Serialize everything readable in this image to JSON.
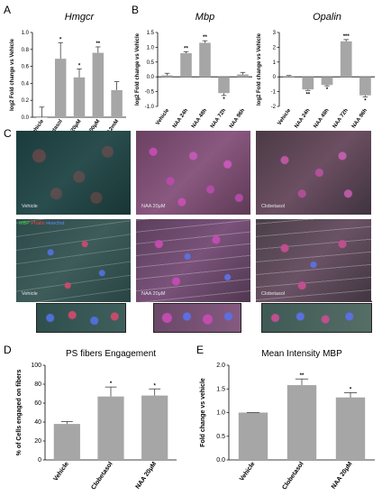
{
  "panels": {
    "A": {
      "letter": "A"
    },
    "B": {
      "letter": "B"
    },
    "C": {
      "letter": "C"
    },
    "D": {
      "letter": "D"
    },
    "E": {
      "letter": "E"
    }
  },
  "micrographs": {
    "legend": {
      "mbp": "MBP",
      "phalloidin": "Phallo",
      "hoechst": "Hoechst"
    },
    "tiles": [
      {
        "label": "Vehicle",
        "legend": false
      },
      {
        "label": "NAA 20μM",
        "legend": false
      },
      {
        "label": "Clobetasol",
        "legend": false
      },
      {
        "label": "Vehicle",
        "legend": true
      },
      {
        "label": "NAA 20μM",
        "legend": false
      },
      {
        "label": "Clobetasol",
        "legend": false
      }
    ]
  },
  "colors": {
    "bar": "#a6a6a6",
    "error": "#404040",
    "axis": "#000000"
  },
  "chart_data": [
    {
      "id": "A",
      "type": "bar",
      "title": "Hmgcr",
      "ylabel": "log2 Fold change vs Vehicle",
      "categories": [
        "Vehicle",
        "Clobetasol",
        "NAA20μM",
        "NAA200μM",
        "NAA2mM"
      ],
      "values": [
        0,
        0.69,
        0.47,
        0.76,
        0.32
      ],
      "errors": [
        0.12,
        0.19,
        0.1,
        0.07,
        0.1
      ],
      "significance": [
        "",
        "*",
        "*",
        "**",
        ""
      ],
      "ylim": [
        0,
        1.0
      ],
      "yticks": [
        "0.0",
        "0.2",
        "0.4",
        "0.6",
        "0.8",
        "1.0"
      ],
      "grid": false
    },
    {
      "id": "B1",
      "type": "bar",
      "title": "Mbp",
      "ylabel": "log2 Fold change vs Vehicle",
      "categories": [
        "Vehicle",
        "NAA 24h",
        "NAA 48h",
        "NAA 72h",
        "NAA 96h"
      ],
      "values": [
        0.05,
        0.8,
        1.15,
        -0.55,
        0.08
      ],
      "errors": [
        0.07,
        0.05,
        0.07,
        0.08,
        0.07
      ],
      "significance": [
        "",
        "**",
        "**",
        "*",
        ""
      ],
      "ylim": [
        -1.0,
        1.5
      ],
      "yticks": [
        "-1.0",
        "-0.5",
        "0.0",
        "0.5",
        "1.0",
        "1.5"
      ],
      "grid": false
    },
    {
      "id": "B2",
      "type": "bar",
      "title": "Opalin",
      "ylabel": "log2 Fold change vs Vehicle",
      "categories": [
        "Vehicle",
        "NAA 24h",
        "NAA 48h",
        "NAA 72h",
        "NAA 96h"
      ],
      "values": [
        0.05,
        -0.85,
        -0.55,
        2.4,
        -1.25
      ],
      "errors": [
        0.04,
        0.07,
        0.06,
        0.12,
        0.1
      ],
      "significance": [
        "",
        "**",
        "*",
        "***",
        "*"
      ],
      "ylim": [
        -2,
        3
      ],
      "yticks": [
        "-2",
        "-1",
        "0",
        "1",
        "2",
        "3"
      ],
      "grid": false
    },
    {
      "id": "D",
      "type": "bar",
      "title": "PS fibers Engagement",
      "ylabel": "% of Cells engaged on fibers",
      "categories": [
        "Vehicle",
        "Clobetasol",
        "NAA 20μM"
      ],
      "values": [
        38,
        67,
        68
      ],
      "errors": [
        2.5,
        10,
        7
      ],
      "significance": [
        "",
        "*",
        "*"
      ],
      "ylim": [
        0,
        100
      ],
      "yticks": [
        "0",
        "20",
        "40",
        "60",
        "80",
        "100"
      ],
      "grid": false
    },
    {
      "id": "E",
      "type": "bar",
      "title": "Mean Intensity MBP",
      "ylabel": "Fold change vs vehicle",
      "categories": [
        "Vehicle",
        "Clobetasol",
        "NAA 20μM"
      ],
      "values": [
        1.0,
        1.58,
        1.32
      ],
      "errors": [
        0,
        0.13,
        0.1
      ],
      "significance": [
        "",
        "**",
        "*"
      ],
      "ylim": [
        0,
        2.0
      ],
      "yticks": [
        "0.0",
        "0.5",
        "1.0",
        "1.5",
        "2.0"
      ],
      "grid": false
    }
  ]
}
